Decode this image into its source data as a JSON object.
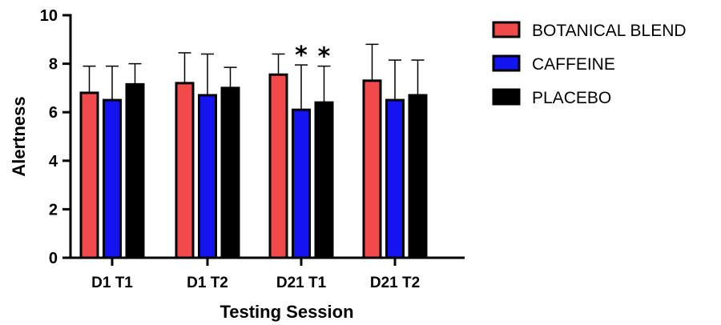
{
  "chart_data": {
    "type": "bar",
    "title": "",
    "xlabel": "Testing Session",
    "ylabel": "Alertness",
    "ylim": [
      0,
      10
    ],
    "yticks": [
      "0",
      "2",
      "4",
      "6",
      "8",
      "10"
    ],
    "categories": [
      "D1 T1",
      "D1 T2",
      "D21 T1",
      "D21 T2"
    ],
    "series": [
      {
        "name": "BOTANICAL BLEND",
        "color": "#f04a4a",
        "values": [
          6.8,
          7.2,
          7.55,
          7.3
        ],
        "errors": [
          1.1,
          1.25,
          0.85,
          1.5
        ]
      },
      {
        "name": "CAFFEINE",
        "color": "#1414f0",
        "values": [
          6.5,
          6.7,
          6.1,
          6.5
        ],
        "errors": [
          1.4,
          1.7,
          1.85,
          1.65
        ]
      },
      {
        "name": "PLACEBO",
        "color": "#000000",
        "values": [
          7.15,
          7.0,
          6.4,
          6.7
        ],
        "errors": [
          0.85,
          0.85,
          1.5,
          1.45
        ]
      }
    ],
    "annotations": [
      {
        "text": "*",
        "category": "D21 T1",
        "series": "CAFFEINE"
      },
      {
        "text": "*",
        "category": "D21 T1",
        "series": "PLACEBO"
      }
    ],
    "grid": false,
    "legend_position": "top-right"
  }
}
